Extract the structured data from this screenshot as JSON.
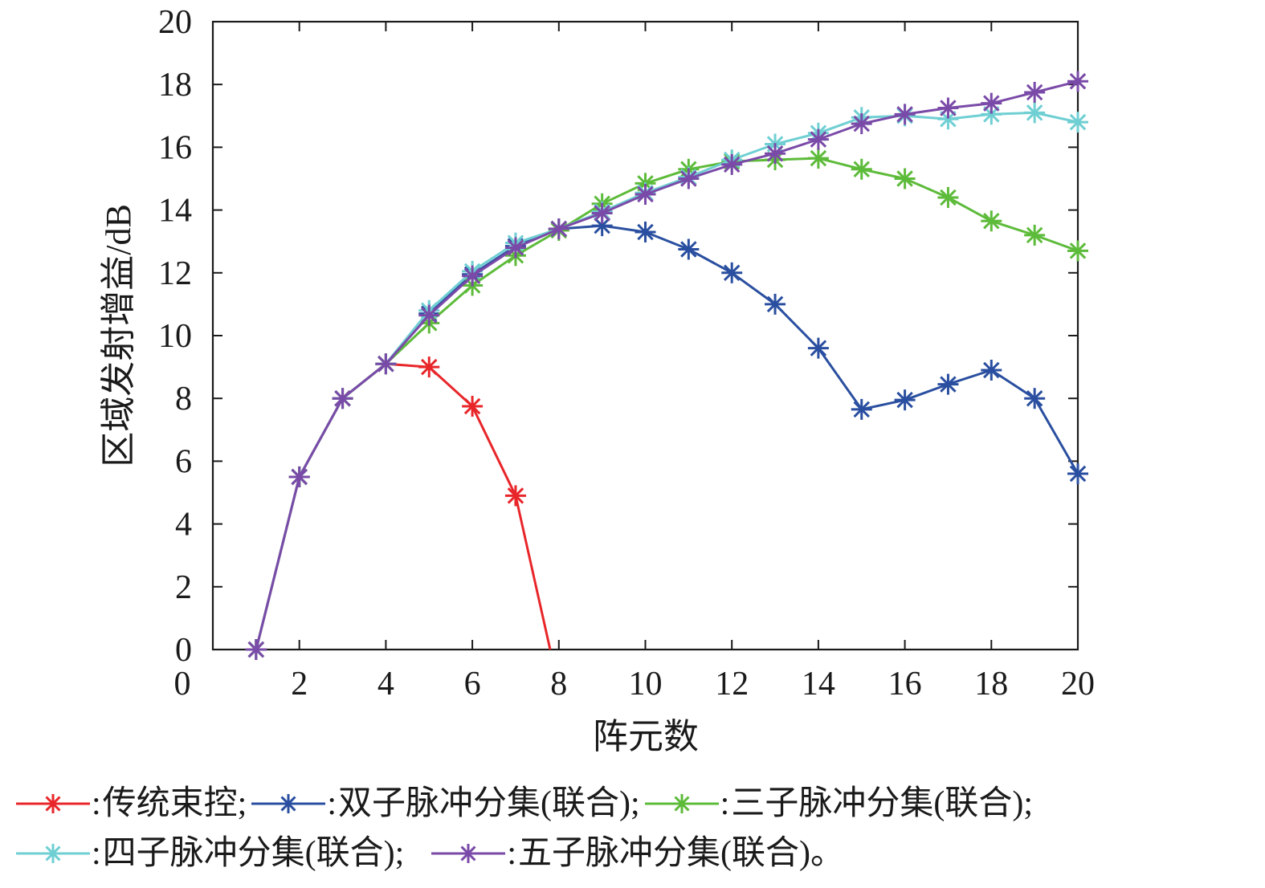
{
  "chart_data": {
    "type": "line",
    "title": "",
    "xlabel": "阵元数",
    "ylabel": "区域发射增益/dB",
    "xlim": [
      0,
      20
    ],
    "ylim": [
      0,
      20
    ],
    "xticks": [
      "0",
      "2",
      "4",
      "6",
      "8",
      "10",
      "12",
      "14",
      "16",
      "18",
      "20"
    ],
    "yticks": [
      "0",
      "2",
      "4",
      "6",
      "8",
      "10",
      "12",
      "14",
      "16",
      "18",
      "20"
    ],
    "grid": false,
    "legend_position": "bottom",
    "series": [
      {
        "name": "传统束控;",
        "color": "#e8262a",
        "marker": "asterisk",
        "x": [
          1,
          2,
          3,
          4,
          5,
          6,
          7,
          7.8
        ],
        "y": [
          0,
          5.5,
          8.0,
          9.1,
          9.0,
          7.75,
          4.9,
          0
        ],
        "marker_until_index": 6
      },
      {
        "name": "双子脉冲分集(联合);",
        "color": "#2a4fa0",
        "marker": "asterisk",
        "x": [
          1,
          2,
          3,
          4,
          5,
          6,
          7,
          8,
          9,
          10,
          11,
          12,
          13,
          14,
          15,
          16,
          17,
          18,
          19,
          20
        ],
        "y": [
          0,
          5.5,
          8.0,
          9.1,
          10.7,
          11.95,
          12.85,
          13.4,
          13.5,
          13.3,
          12.75,
          12.0,
          11.0,
          9.6,
          7.65,
          7.95,
          8.45,
          8.9,
          8.0,
          5.6
        ]
      },
      {
        "name": "三子脉冲分集(联合);",
        "color": "#5dbb3a",
        "marker": "asterisk",
        "x": [
          1,
          2,
          3,
          4,
          5,
          6,
          7,
          8,
          9,
          10,
          11,
          12,
          13,
          14,
          15,
          16,
          17,
          18,
          19,
          20
        ],
        "y": [
          0,
          5.5,
          8.0,
          9.1,
          10.4,
          11.6,
          12.55,
          13.35,
          14.2,
          14.85,
          15.3,
          15.55,
          15.6,
          15.65,
          15.3,
          15.0,
          14.4,
          13.65,
          13.2,
          12.7
        ]
      },
      {
        "name": "四子脉冲分集(联合);",
        "color": "#6fcfd3",
        "marker": "asterisk",
        "x": [
          1,
          2,
          3,
          4,
          5,
          6,
          7,
          8,
          9,
          10,
          11,
          12,
          13,
          14,
          15,
          16,
          17,
          18,
          19,
          20
        ],
        "y": [
          0,
          5.5,
          8.0,
          9.1,
          10.8,
          12.05,
          12.95,
          13.4,
          13.95,
          14.55,
          15.05,
          15.6,
          16.1,
          16.45,
          16.95,
          17.0,
          16.9,
          17.05,
          17.1,
          16.8
        ]
      },
      {
        "name": "五子脉冲分集(联合)。",
        "color": "#7a4aa8",
        "marker": "asterisk",
        "x": [
          1,
          2,
          3,
          4,
          5,
          6,
          7,
          8,
          9,
          10,
          11,
          12,
          13,
          14,
          15,
          16,
          17,
          18,
          19,
          20
        ],
        "y": [
          0,
          5.5,
          8.0,
          9.1,
          10.65,
          11.9,
          12.8,
          13.4,
          13.9,
          14.5,
          15.0,
          15.45,
          15.8,
          16.25,
          16.75,
          17.05,
          17.25,
          17.4,
          17.75,
          18.1
        ]
      }
    ]
  },
  "legend": {
    "separator": ": ",
    "rows": [
      [
        0,
        1,
        2
      ],
      [
        3,
        4
      ]
    ]
  }
}
